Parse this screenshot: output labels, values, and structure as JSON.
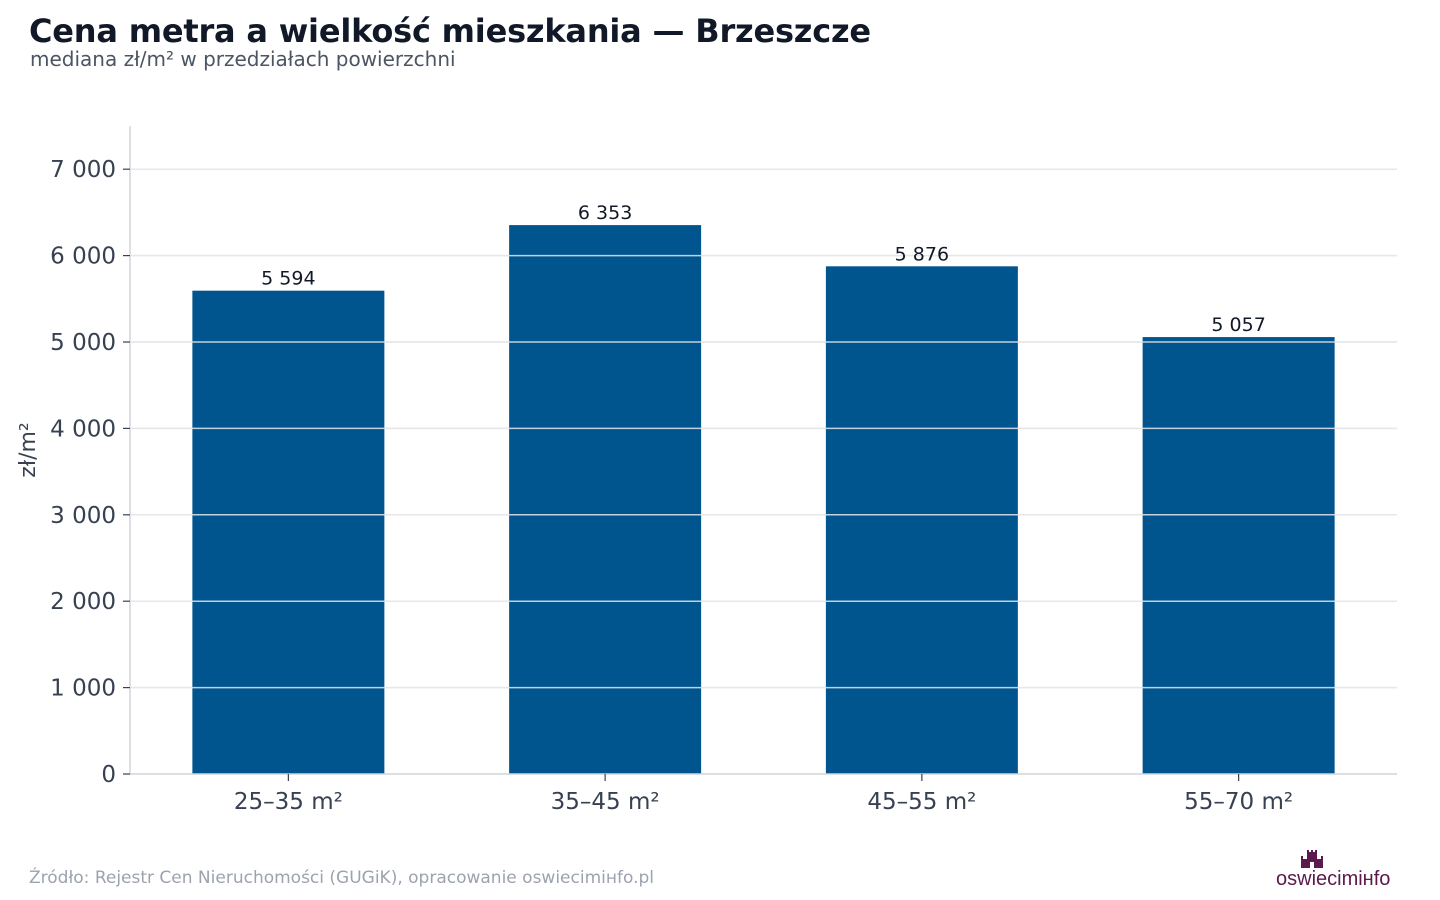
{
  "header": {
    "title": "Cena metra a wielkość mieszkania — Brzeszcze",
    "subtitle": "mediana zł/m² w przedziałach powierzchni"
  },
  "footer": {
    "source": "Źródło: Rejestr Cen Nieruchomości (GUGiK), opracowanie oswiecimінfo.pl",
    "logo_text": "oswiecimінfo"
  },
  "colors": {
    "bar": "#00558f",
    "grid": "#e5e7eb",
    "tick_text": "#374151",
    "logo": "#5b1a4b"
  },
  "chart_data": {
    "type": "bar",
    "title": "Cena metra a wielkość mieszkania — Brzeszcze",
    "subtitle": "mediana zł/m² w przedziałach powierzchni",
    "xlabel": "",
    "ylabel": "zł/m²",
    "categories": [
      "25–35 m²",
      "35–45 m²",
      "45–55 m²",
      "55–70 m²"
    ],
    "values": [
      5594,
      6353,
      5876,
      5057
    ],
    "data_labels": [
      "5 594",
      "6 353",
      "5 876",
      "5 057"
    ],
    "ylim": [
      0,
      7500
    ],
    "yticks": [
      0,
      1000,
      2000,
      3000,
      4000,
      5000,
      6000,
      7000
    ],
    "ytick_labels": [
      "0",
      "1 000",
      "2 000",
      "3 000",
      "4 000",
      "5 000",
      "6 000",
      "7 000"
    ],
    "grid": true,
    "legend": "none"
  }
}
